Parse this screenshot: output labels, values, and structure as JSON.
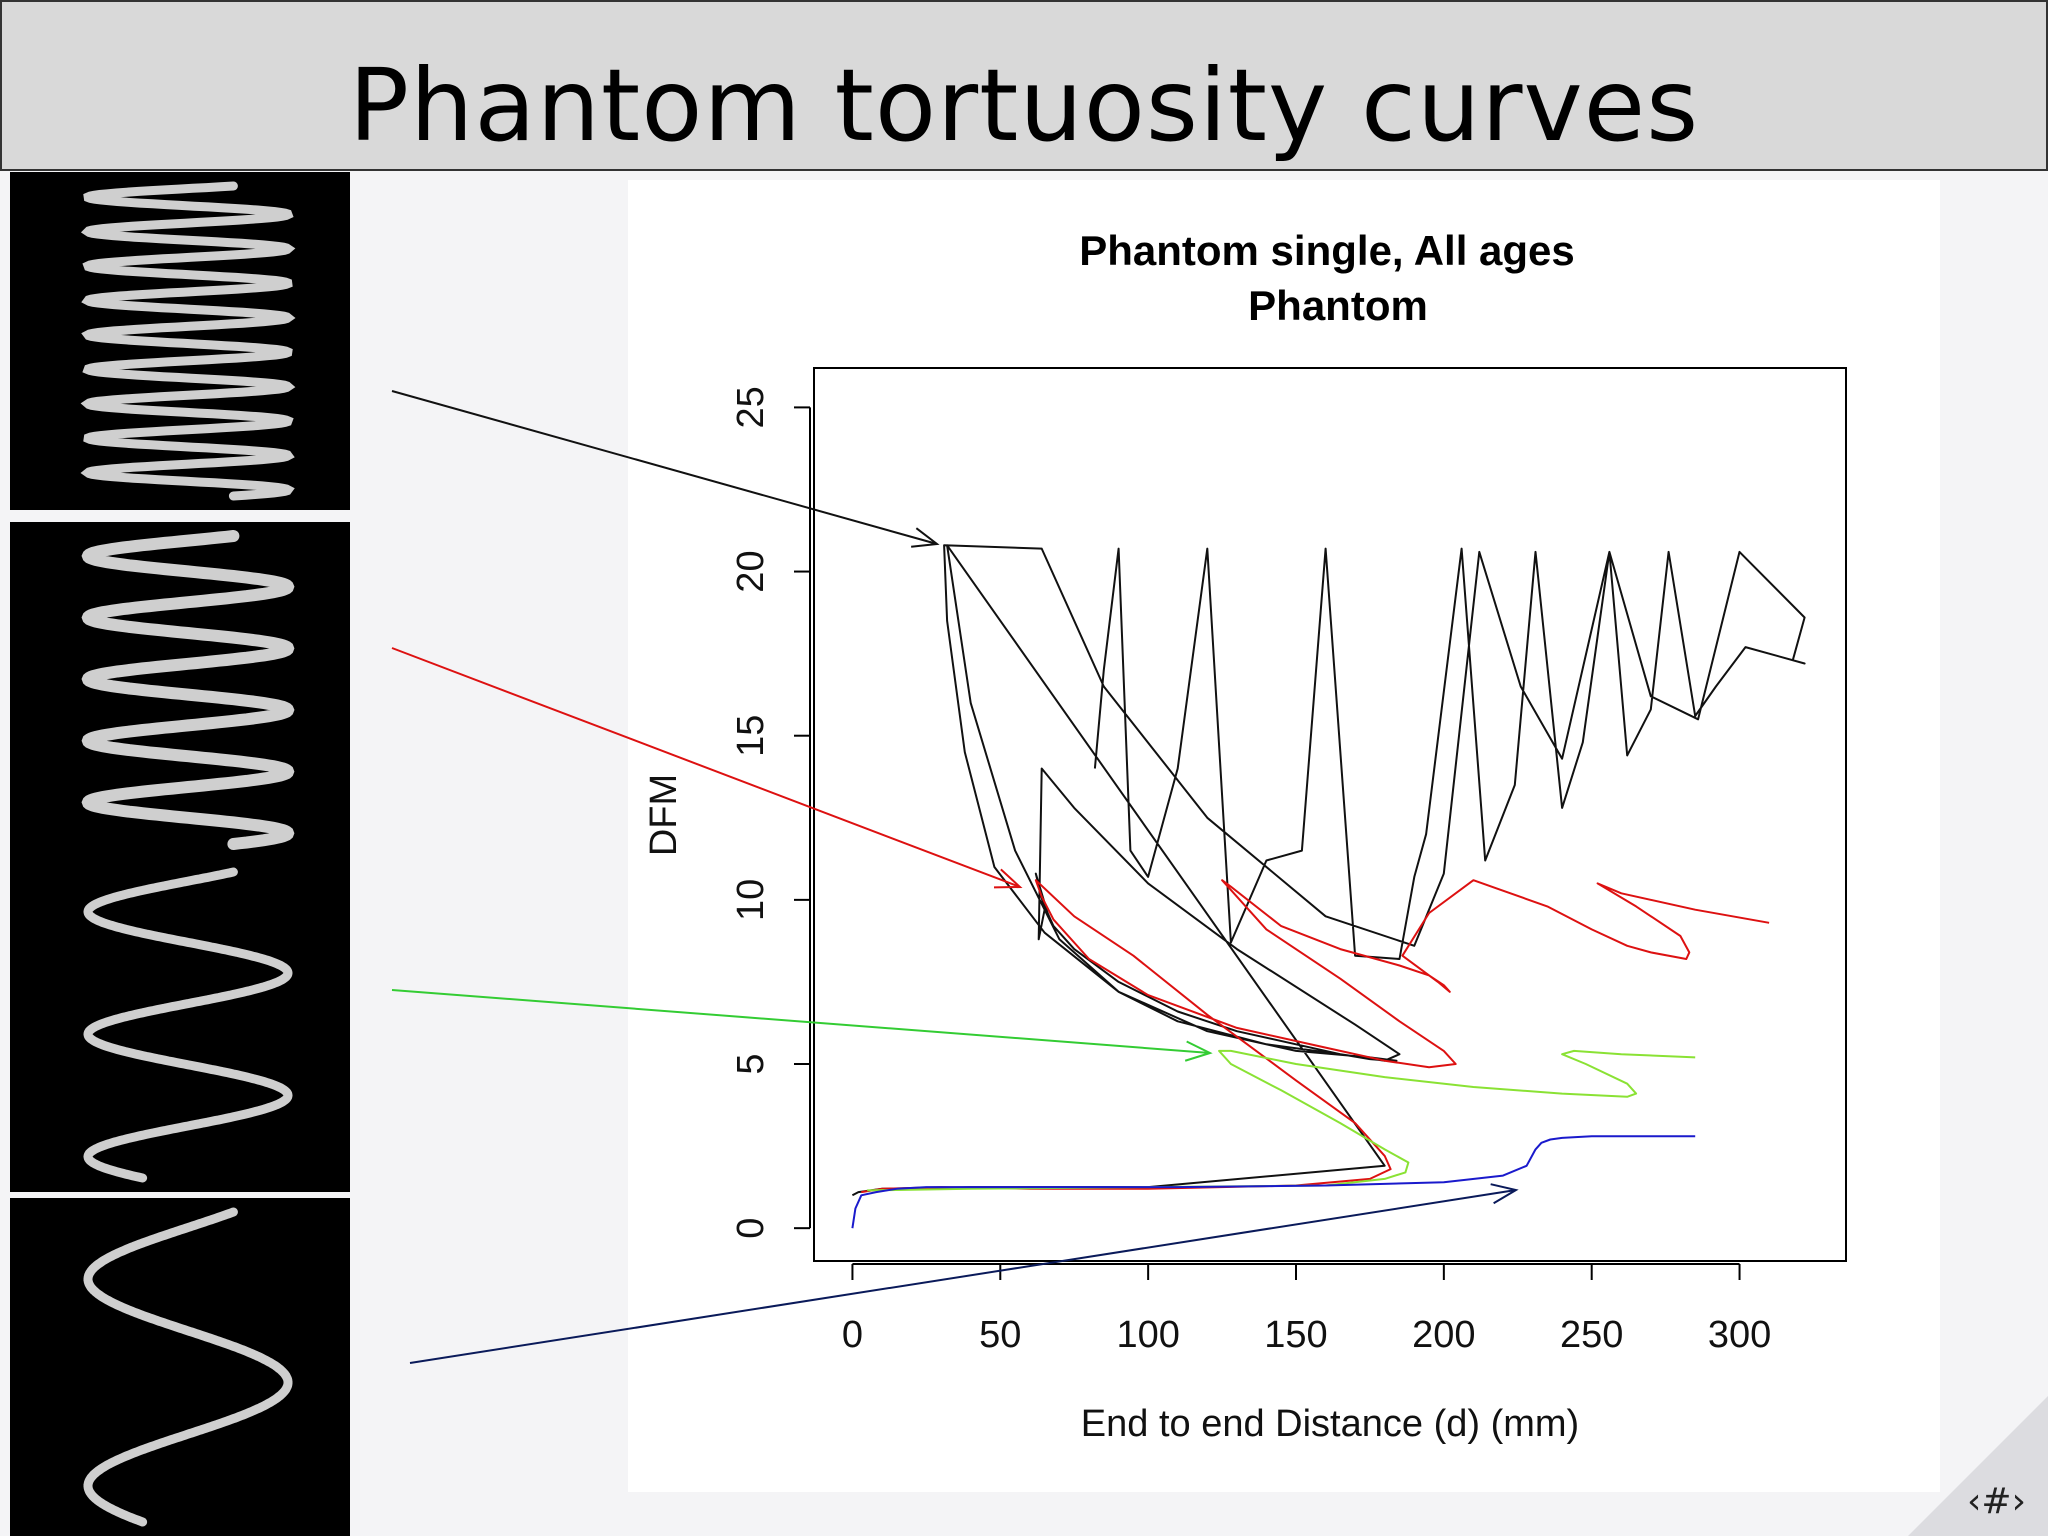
{
  "slide": {
    "title": "Phantom tortuosity curves",
    "page_number": "‹#›"
  },
  "chart_data": {
    "type": "line",
    "title": "Phantom single, All ages",
    "subtitle": "Phantom",
    "xlabel": "End to end Distance (d) (mm)",
    "ylabel": "DFM",
    "xlim": [
      -13,
      336
    ],
    "ylim": [
      -1,
      26.2
    ],
    "x_ticks": [
      "0",
      "50",
      "100",
      "150",
      "200",
      "250",
      "300"
    ],
    "y_ticks": [
      "0",
      "5",
      "10",
      "15",
      "20",
      "25"
    ],
    "grid": false,
    "legend": "none",
    "colors": {
      "black": "#111111",
      "red": "#dd1111",
      "green": "#8ae234",
      "blue": "#1a1acc",
      "arrow_green": "#33cc33",
      "arrow_navy": "#0a1a5a"
    },
    "series": [
      {
        "color": "black",
        "x": [
          0,
          2,
          10,
          40,
          100,
          180,
          32,
          40,
          55,
          70,
          90,
          110,
          140,
          165,
          180,
          185,
          170,
          130,
          100,
          75,
          64,
          63,
          65,
          62,
          64,
          66,
          68,
          75,
          90,
          110,
          130,
          150,
          165,
          175,
          182,
          184,
          175,
          150,
          120,
          90,
          65,
          48,
          38,
          32,
          31,
          64,
          85,
          120,
          160,
          190,
          200,
          212,
          226,
          240,
          256,
          270,
          286,
          300,
          322,
          318,
          322,
          302,
          292,
          285,
          276,
          270,
          262,
          256,
          247,
          240,
          231,
          224,
          214,
          206,
          194,
          190,
          185,
          170,
          160,
          152,
          140,
          128,
          120,
          110,
          100,
          94,
          90,
          85,
          82
        ],
        "y": [
          1,
          1.1,
          1.2,
          1.25,
          1.25,
          1.9,
          20.8,
          16,
          11.5,
          8.8,
          7.2,
          6.3,
          5.6,
          5.3,
          5.1,
          5.3,
          6.2,
          8.5,
          10.5,
          12.8,
          14,
          8.8,
          9.7,
          10.8,
          10.2,
          9.6,
          9.2,
          8.5,
          7.5,
          6.6,
          6,
          5.6,
          5.3,
          5.15,
          5.1,
          5.1,
          5.2,
          5.4,
          6,
          7.2,
          9,
          11,
          14.5,
          18.5,
          20.8,
          20.7,
          16.5,
          12.5,
          9.5,
          8.6,
          10.8,
          20.6,
          16.5,
          14.3,
          20.6,
          16.2,
          15.5,
          20.6,
          18.6,
          17.3,
          17.2,
          17.7,
          16.5,
          15.6,
          20.6,
          15.8,
          14.4,
          20.6,
          14.8,
          12.8,
          20.6,
          13.5,
          11.2,
          20.7,
          12,
          10.7,
          8.2,
          8.3,
          20.7,
          11.5,
          11.2,
          8.7,
          20.7,
          14,
          10.7,
          11.5,
          20.7,
          17,
          14
        ]
      },
      {
        "color": "red",
        "x": [
          3,
          10,
          30,
          60,
          100,
          150,
          175,
          182,
          180,
          170,
          150,
          120,
          95,
          75,
          62,
          64,
          68,
          80,
          100,
          130,
          160,
          180,
          195,
          204,
          200,
          185,
          165,
          140,
          125,
          128,
          145,
          165,
          185,
          195,
          200,
          202,
          198,
          186,
          195,
          210,
          235,
          250,
          262,
          270,
          282,
          283,
          280,
          265,
          252,
          260,
          285,
          310
        ],
        "y": [
          1.1,
          1.2,
          1.25,
          1.2,
          1.2,
          1.3,
          1.5,
          1.8,
          2.2,
          3.2,
          4.5,
          6.5,
          8.3,
          9.5,
          10.6,
          10.1,
          9.4,
          8.2,
          7.1,
          6.1,
          5.5,
          5.1,
          4.9,
          5,
          5.4,
          6.3,
          7.6,
          9.1,
          10.6,
          10.4,
          9.2,
          8.5,
          8,
          7.7,
          7.4,
          7.2,
          7.5,
          8.3,
          9.6,
          10.6,
          9.8,
          9.1,
          8.6,
          8.4,
          8.2,
          8.4,
          8.9,
          9.8,
          10.5,
          10.2,
          9.7,
          9.3
        ]
      },
      {
        "color": "green",
        "x": [
          5,
          40,
          100,
          160,
          180,
          187,
          188,
          180,
          165,
          145,
          128,
          124,
          128,
          150,
          180,
          210,
          240,
          262,
          265,
          262,
          248,
          240,
          244,
          260,
          285
        ],
        "y": [
          1.15,
          1.2,
          1.25,
          1.3,
          1.5,
          1.7,
          2,
          2.4,
          3.2,
          4.2,
          5,
          5.4,
          5.4,
          5,
          4.6,
          4.3,
          4.1,
          4,
          4.1,
          4.4,
          5,
          5.3,
          5.4,
          5.3,
          5.2
        ]
      },
      {
        "color": "blue",
        "x": [
          0,
          1,
          3,
          8,
          15,
          25,
          40,
          70,
          110,
          160,
          200,
          220,
          228,
          231,
          233,
          236,
          240,
          250,
          270,
          285
        ],
        "y": [
          0,
          0.6,
          1,
          1.1,
          1.2,
          1.25,
          1.25,
          1.25,
          1.25,
          1.3,
          1.4,
          1.6,
          1.9,
          2.4,
          2.6,
          2.7,
          2.75,
          2.8,
          2.8,
          2.8
        ]
      }
    ]
  },
  "arrows": [
    {
      "color": "black"
    },
    {
      "color": "red"
    },
    {
      "color": "arrow_green"
    },
    {
      "color": "arrow_navy"
    }
  ],
  "thumbnails": [
    {
      "turns": 9
    },
    {
      "turns": 5
    },
    {
      "turns": 2.5
    },
    {
      "turns": 1.5
    }
  ]
}
